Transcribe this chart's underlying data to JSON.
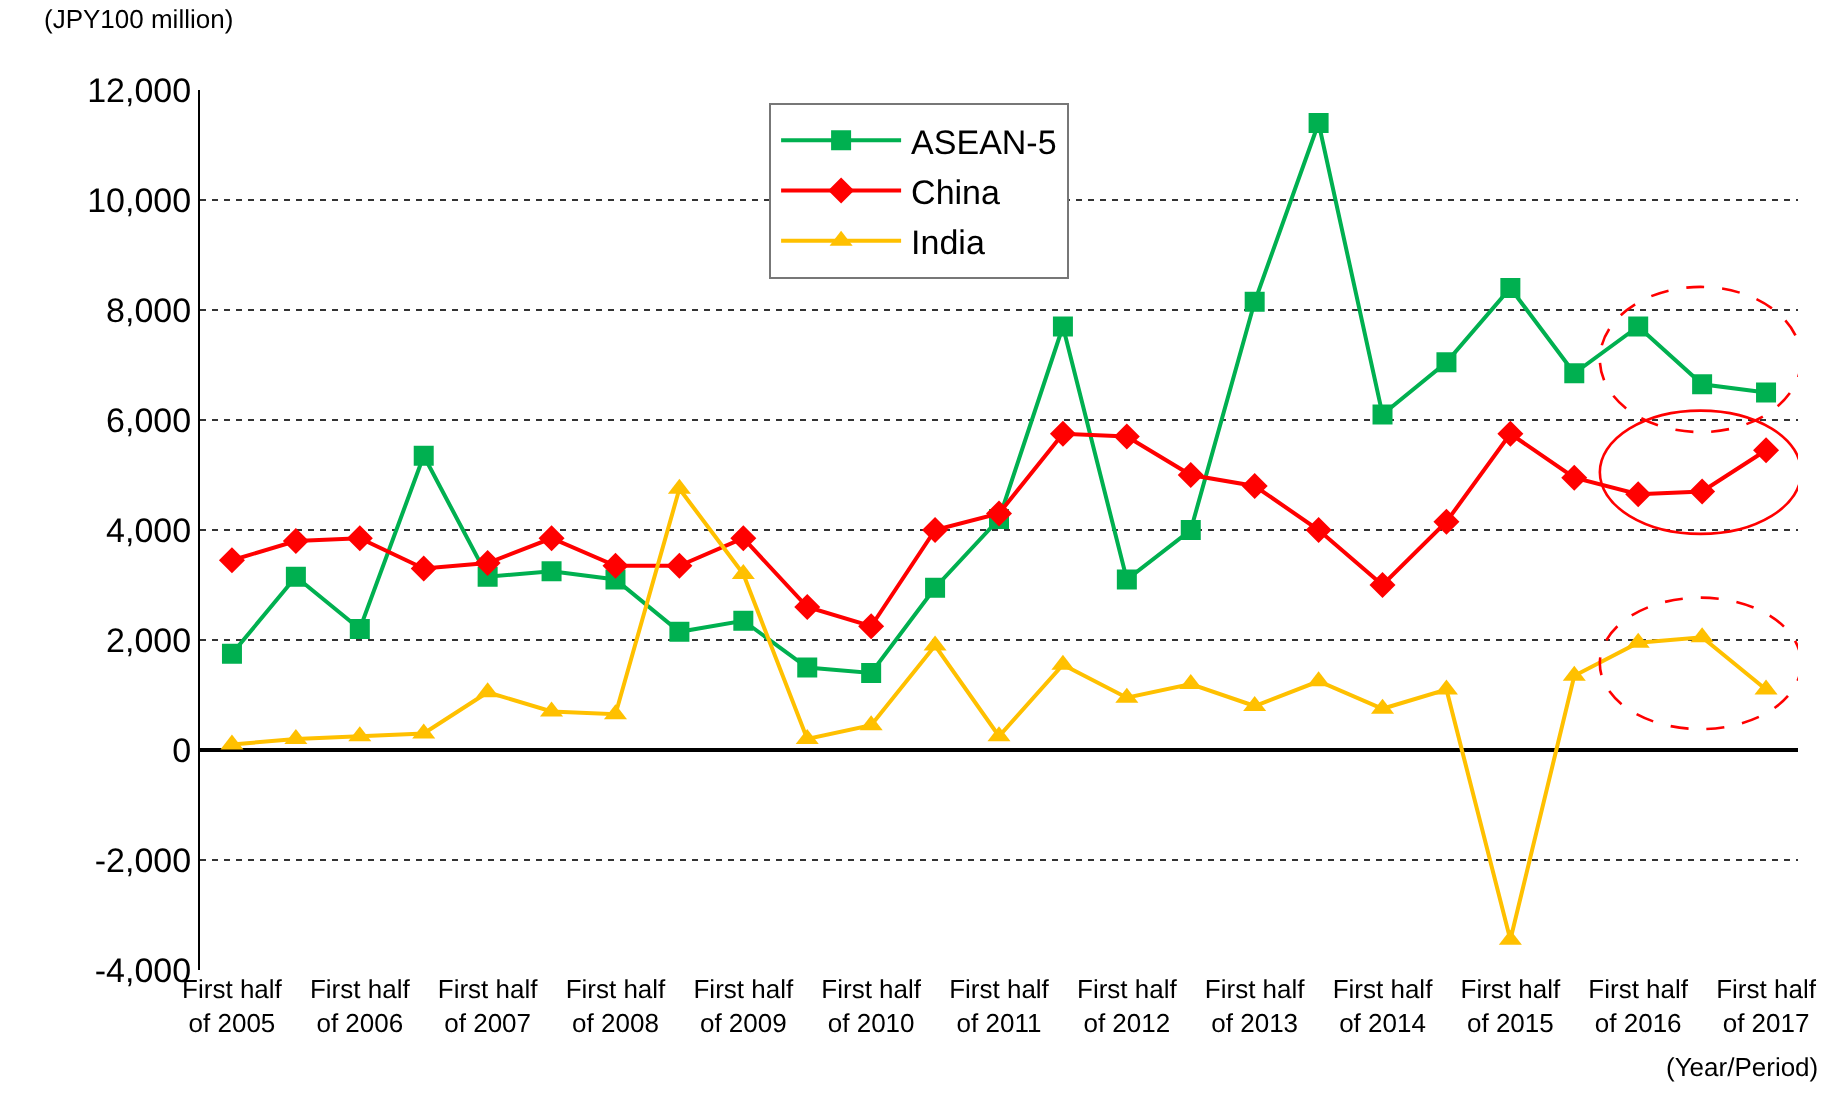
{
  "chart_data": {
    "type": "line",
    "ylabel": "(JPY100 million)",
    "xlabel": "(Year/Period)",
    "categories": [
      "First half\nof 2005",
      null,
      "First half\nof 2006",
      null,
      "First half\nof 2007",
      null,
      "First half\nof 2008",
      null,
      "First half\nof 2009",
      null,
      "First half\nof 2010",
      null,
      "First half\nof 2011",
      null,
      "First half\nof 2012",
      null,
      "First half\nof 2013",
      null,
      "First half\nof 2014",
      null,
      "First half\nof 2015",
      null,
      "First half\nof 2016",
      null,
      "First half\nof 2017"
    ],
    "series": [
      {
        "name": "ASEAN-5",
        "color": "#00b050",
        "marker": "square",
        "values": [
          1750,
          3150,
          2200,
          5350,
          3150,
          3250,
          3100,
          2150,
          2350,
          1500,
          1400,
          2950,
          4200,
          7700,
          3100,
          4000,
          8150,
          11400,
          6100,
          7050,
          8400,
          6850,
          7700,
          6650,
          6500
        ]
      },
      {
        "name": "China",
        "color": "#ff0000",
        "marker": "diamond",
        "values": [
          3450,
          3800,
          3850,
          3300,
          3400,
          3850,
          3350,
          3350,
          3850,
          2600,
          2250,
          4000,
          4300,
          5750,
          5700,
          5000,
          4800,
          4000,
          3000,
          4150,
          5750,
          4950,
          4650,
          4700,
          5450
        ]
      },
      {
        "name": "India",
        "color": "#ffc000",
        "marker": "triangle",
        "values": [
          100,
          200,
          250,
          300,
          1050,
          700,
          650,
          4750,
          3200,
          200,
          450,
          1900,
          250,
          1550,
          950,
          1200,
          800,
          1250,
          750,
          1100,
          -3450,
          1350,
          1950,
          2050,
          1100
        ]
      }
    ],
    "ylim": [
      -4000,
      12000
    ],
    "yticks": [
      {
        "value": -4000,
        "label": "-4,000"
      },
      {
        "value": -2000,
        "label": "-2,000"
      },
      0,
      {
        "value": 2000,
        "label": "2,000"
      },
      {
        "value": 4000,
        "label": "4,000"
      },
      {
        "value": 6000,
        "label": "6,000"
      },
      {
        "value": 8000,
        "label": "8,000"
      },
      {
        "value": 10000,
        "label": "10,000"
      },
      {
        "value": 12000,
        "label": "12,000"
      }
    ],
    "grid": "y",
    "legend": "top",
    "line_style": "solid"
  }
}
